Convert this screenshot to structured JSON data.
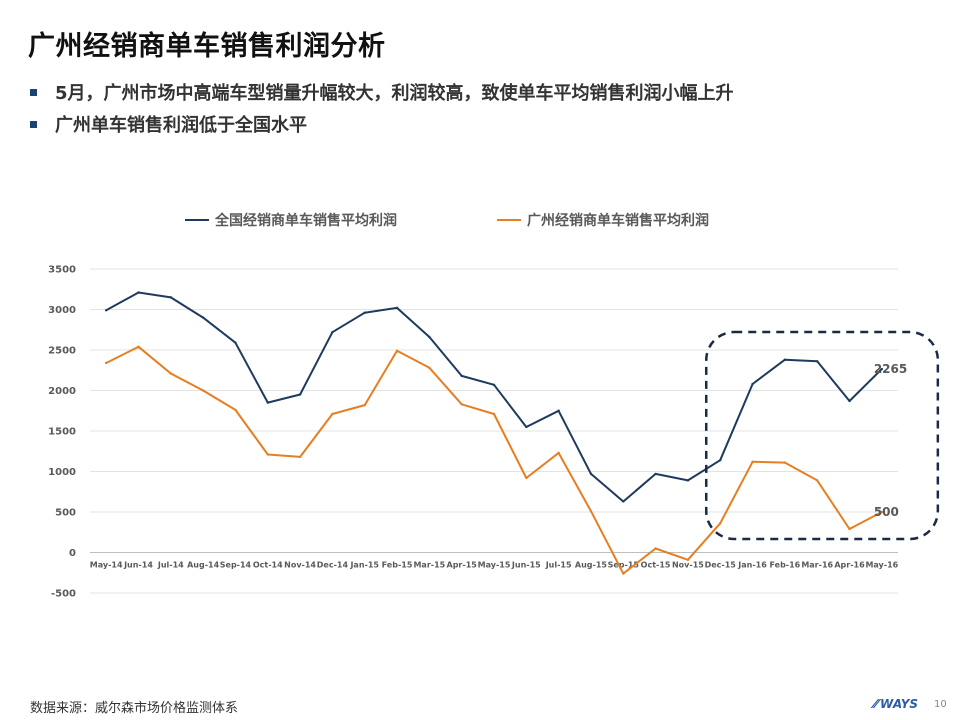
{
  "page": {
    "title": "广州经销商单车销售利润分析",
    "bullets": [
      "5月，广州市场中高端车型销量升幅较大，利润较高，致使单车平均销售利润小幅上升",
      "广州单车销售利润低于全国水平"
    ],
    "source": "数据来源：威尔森市场价格监测体系",
    "logo_text": "WAYS",
    "page_number": "10"
  },
  "chart_data": {
    "type": "line",
    "categories": [
      "May-14",
      "Jun-14",
      "Jul-14",
      "Aug-14",
      "Sep-14",
      "Oct-14",
      "Nov-14",
      "Dec-14",
      "Jan-15",
      "Feb-15",
      "Mar-15",
      "Apr-15",
      "May-15",
      "Jun-15",
      "Jul-15",
      "Aug-15",
      "Sep-15",
      "Oct-15",
      "Nov-15",
      "Dec-15",
      "Jan-16",
      "Feb-16",
      "Mar-16",
      "Apr-16",
      "May-16"
    ],
    "series": [
      {
        "name": "全国经销商单车销售平均利润",
        "color": "#1f3a5f",
        "values": [
          2990,
          3210,
          3150,
          2900,
          2590,
          1850,
          1950,
          2720,
          2960,
          3020,
          2660,
          2180,
          2070,
          1550,
          1750,
          970,
          630,
          970,
          890,
          1140,
          2080,
          2380,
          2360,
          1870,
          2265
        ]
      },
      {
        "name": "广州经销商单车销售平均利润",
        "color": "#e67e22",
        "values": [
          2340,
          2540,
          2210,
          2000,
          1760,
          1210,
          1180,
          1710,
          1820,
          2490,
          2280,
          1830,
          1710,
          920,
          1230,
          510,
          -260,
          50,
          -90,
          360,
          1120,
          1110,
          890,
          290,
          500
        ]
      }
    ],
    "ylim": [
      -500,
      3500
    ],
    "yticks": [
      -500,
      0,
      500,
      1000,
      1500,
      2000,
      2500,
      3000,
      3500
    ],
    "grid": true,
    "legend": "top",
    "data_labels": [
      {
        "series": 0,
        "index": 24,
        "text": "2265"
      },
      {
        "series": 1,
        "index": 24,
        "text": "500"
      }
    ],
    "highlight": {
      "from": "Dec-15",
      "to": "May-16",
      "style": "dashed-rounded-box"
    }
  }
}
